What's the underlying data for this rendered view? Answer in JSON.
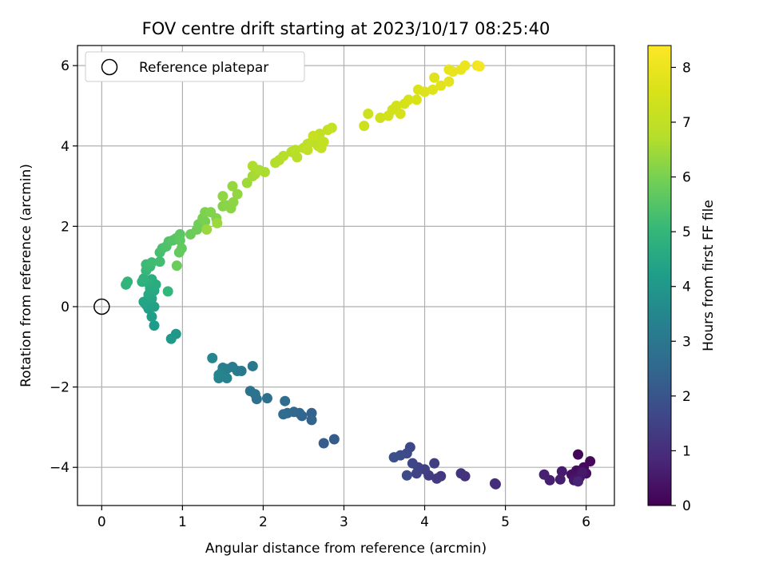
{
  "chart_data": {
    "type": "scatter",
    "title": "FOV centre drift starting at 2023/10/17 08:25:40",
    "xlabel": "Angular distance from reference (arcmin)",
    "ylabel": "Rotation from reference (arcmin)",
    "xlim": [
      -0.3,
      6.35
    ],
    "ylim": [
      -4.95,
      6.5
    ],
    "xticks": [
      0,
      1,
      2,
      3,
      4,
      5,
      6
    ],
    "yticks": [
      -4,
      -2,
      0,
      2,
      4,
      6
    ],
    "xtick_labels": [
      "0",
      "1",
      "2",
      "3",
      "4",
      "5",
      "6"
    ],
    "ytick_labels": [
      "−4",
      "−2",
      "0",
      "2",
      "4",
      "6"
    ],
    "grid": true,
    "legend": {
      "placement": "top-left",
      "entries": [
        "Reference platepar"
      ]
    },
    "colorbar": {
      "label": "Hours from first FF file",
      "range": [
        0,
        8.4
      ],
      "ticks": [
        0,
        1,
        2,
        3,
        4,
        5,
        6,
        7,
        8
      ],
      "tick_labels": [
        "0",
        "1",
        "2",
        "3",
        "4",
        "5",
        "6",
        "7",
        "8"
      ],
      "colormap": "viridis"
    },
    "reference_point": {
      "x": 0,
      "y": 0
    },
    "points": [
      {
        "x": 5.9,
        "y": -3.68,
        "t": 0.1
      },
      {
        "x": 6.05,
        "y": -3.85,
        "t": 0.15
      },
      {
        "x": 5.97,
        "y": -4.0,
        "t": 0.2
      },
      {
        "x": 5.88,
        "y": -4.08,
        "t": 0.25
      },
      {
        "x": 6.0,
        "y": -4.15,
        "t": 0.3
      },
      {
        "x": 5.82,
        "y": -4.18,
        "t": 0.35
      },
      {
        "x": 5.92,
        "y": -4.25,
        "t": 0.4
      },
      {
        "x": 5.85,
        "y": -4.32,
        "t": 0.45
      },
      {
        "x": 5.95,
        "y": -4.12,
        "t": 0.5
      },
      {
        "x": 5.7,
        "y": -4.1,
        "t": 0.55
      },
      {
        "x": 5.68,
        "y": -4.3,
        "t": 0.6
      },
      {
        "x": 5.55,
        "y": -4.32,
        "t": 0.65
      },
      {
        "x": 5.48,
        "y": -4.18,
        "t": 0.7
      },
      {
        "x": 5.9,
        "y": -4.35,
        "t": 0.75
      },
      {
        "x": 4.88,
        "y": -4.42,
        "t": 0.95
      },
      {
        "x": 4.87,
        "y": -4.4,
        "t": 1.0
      },
      {
        "x": 4.5,
        "y": -4.22,
        "t": 1.1
      },
      {
        "x": 4.45,
        "y": -4.15,
        "t": 1.15
      },
      {
        "x": 4.2,
        "y": -4.22,
        "t": 1.25
      },
      {
        "x": 4.15,
        "y": -4.28,
        "t": 1.3
      },
      {
        "x": 4.05,
        "y": -4.2,
        "t": 1.35
      },
      {
        "x": 4.12,
        "y": -3.9,
        "t": 1.4
      },
      {
        "x": 4.0,
        "y": -4.05,
        "t": 1.45
      },
      {
        "x": 3.92,
        "y": -4.0,
        "t": 1.5
      },
      {
        "x": 3.9,
        "y": -4.15,
        "t": 1.55
      },
      {
        "x": 3.85,
        "y": -3.9,
        "t": 1.6
      },
      {
        "x": 3.82,
        "y": -3.5,
        "t": 1.65
      },
      {
        "x": 3.78,
        "y": -3.65,
        "t": 1.7
      },
      {
        "x": 3.78,
        "y": -4.2,
        "t": 1.75
      },
      {
        "x": 3.7,
        "y": -3.7,
        "t": 1.8
      },
      {
        "x": 3.62,
        "y": -3.75,
        "t": 1.85
      },
      {
        "x": 2.88,
        "y": -3.3,
        "t": 2.2
      },
      {
        "x": 2.75,
        "y": -3.4,
        "t": 2.25
      },
      {
        "x": 2.6,
        "y": -2.65,
        "t": 2.35
      },
      {
        "x": 2.6,
        "y": -2.82,
        "t": 2.4
      },
      {
        "x": 2.48,
        "y": -2.72,
        "t": 2.45
      },
      {
        "x": 2.45,
        "y": -2.65,
        "t": 2.5
      },
      {
        "x": 2.38,
        "y": -2.62,
        "t": 2.55
      },
      {
        "x": 2.3,
        "y": -2.65,
        "t": 2.6
      },
      {
        "x": 2.25,
        "y": -2.68,
        "t": 2.65
      },
      {
        "x": 2.27,
        "y": -2.35,
        "t": 2.7
      },
      {
        "x": 2.05,
        "y": -2.28,
        "t": 2.75
      },
      {
        "x": 1.92,
        "y": -2.3,
        "t": 2.8
      },
      {
        "x": 1.9,
        "y": -2.18,
        "t": 2.85
      },
      {
        "x": 1.84,
        "y": -2.1,
        "t": 2.9
      },
      {
        "x": 1.87,
        "y": -1.48,
        "t": 3.0
      },
      {
        "x": 1.73,
        "y": -1.6,
        "t": 3.05
      },
      {
        "x": 1.68,
        "y": -1.6,
        "t": 3.1
      },
      {
        "x": 1.62,
        "y": -1.5,
        "t": 3.15
      },
      {
        "x": 1.55,
        "y": -1.55,
        "t": 3.2
      },
      {
        "x": 1.5,
        "y": -1.52,
        "t": 3.25
      },
      {
        "x": 1.48,
        "y": -1.65,
        "t": 3.3
      },
      {
        "x": 1.45,
        "y": -1.78,
        "t": 3.35
      },
      {
        "x": 1.55,
        "y": -1.78,
        "t": 3.4
      },
      {
        "x": 1.45,
        "y": -1.7,
        "t": 3.45
      },
      {
        "x": 1.37,
        "y": -1.28,
        "t": 3.5
      },
      {
        "x": 0.92,
        "y": -0.68,
        "t": 4.0
      },
      {
        "x": 0.86,
        "y": -0.8,
        "t": 4.05
      },
      {
        "x": 0.65,
        "y": -0.47,
        "t": 4.15
      },
      {
        "x": 0.62,
        "y": -0.25,
        "t": 4.2
      },
      {
        "x": 0.58,
        "y": -0.05,
        "t": 4.25
      },
      {
        "x": 0.65,
        "y": 0.0,
        "t": 4.3
      },
      {
        "x": 0.55,
        "y": 0.05,
        "t": 4.35
      },
      {
        "x": 0.52,
        "y": 0.12,
        "t": 4.4
      },
      {
        "x": 0.62,
        "y": 0.2,
        "t": 4.45
      },
      {
        "x": 0.58,
        "y": 0.3,
        "t": 4.5
      },
      {
        "x": 0.65,
        "y": 0.4,
        "t": 4.55
      },
      {
        "x": 0.6,
        "y": 0.45,
        "t": 4.6
      },
      {
        "x": 0.67,
        "y": 0.55,
        "t": 4.65
      },
      {
        "x": 0.62,
        "y": 0.68,
        "t": 4.7
      },
      {
        "x": 0.57,
        "y": 0.6,
        "t": 4.75
      },
      {
        "x": 0.5,
        "y": 0.62,
        "t": 4.8
      },
      {
        "x": 0.52,
        "y": 0.7,
        "t": 4.85
      },
      {
        "x": 0.3,
        "y": 0.55,
        "t": 4.9
      },
      {
        "x": 0.32,
        "y": 0.62,
        "t": 4.95
      },
      {
        "x": 0.82,
        "y": 0.38,
        "t": 5.0
      },
      {
        "x": 0.55,
        "y": 0.9,
        "t": 5.05
      },
      {
        "x": 0.6,
        "y": 1.0,
        "t": 5.1
      },
      {
        "x": 0.55,
        "y": 1.05,
        "t": 5.15
      },
      {
        "x": 0.62,
        "y": 1.1,
        "t": 5.2
      },
      {
        "x": 0.72,
        "y": 1.12,
        "t": 5.25
      },
      {
        "x": 0.72,
        "y": 1.35,
        "t": 5.3
      },
      {
        "x": 0.75,
        "y": 1.45,
        "t": 5.35
      },
      {
        "x": 0.8,
        "y": 1.5,
        "t": 5.4
      },
      {
        "x": 0.83,
        "y": 1.62,
        "t": 5.45
      },
      {
        "x": 0.88,
        "y": 1.65,
        "t": 5.5
      },
      {
        "x": 0.92,
        "y": 1.7,
        "t": 5.55
      },
      {
        "x": 0.97,
        "y": 1.8,
        "t": 5.6
      },
      {
        "x": 0.97,
        "y": 1.65,
        "t": 5.65
      },
      {
        "x": 0.99,
        "y": 1.45,
        "t": 5.7
      },
      {
        "x": 0.96,
        "y": 1.35,
        "t": 5.75
      },
      {
        "x": 0.93,
        "y": 1.02,
        "t": 5.8
      },
      {
        "x": 1.1,
        "y": 1.8,
        "t": 5.82
      },
      {
        "x": 1.18,
        "y": 1.92,
        "t": 5.85
      },
      {
        "x": 1.2,
        "y": 2.05,
        "t": 5.9
      },
      {
        "x": 1.28,
        "y": 2.12,
        "t": 5.95
      },
      {
        "x": 1.25,
        "y": 2.2,
        "t": 6.0
      },
      {
        "x": 1.28,
        "y": 2.35,
        "t": 6.05
      },
      {
        "x": 1.35,
        "y": 2.35,
        "t": 6.1
      },
      {
        "x": 1.42,
        "y": 2.2,
        "t": 6.12
      },
      {
        "x": 1.5,
        "y": 2.5,
        "t": 6.15
      },
      {
        "x": 1.55,
        "y": 2.52,
        "t": 6.2
      },
      {
        "x": 1.6,
        "y": 2.45,
        "t": 6.22
      },
      {
        "x": 1.63,
        "y": 2.6,
        "t": 6.25
      },
      {
        "x": 1.5,
        "y": 2.75,
        "t": 6.28
      },
      {
        "x": 1.68,
        "y": 2.8,
        "t": 6.3
      },
      {
        "x": 1.62,
        "y": 3.0,
        "t": 6.35
      },
      {
        "x": 1.3,
        "y": 1.92,
        "t": 6.38
      },
      {
        "x": 1.43,
        "y": 2.08,
        "t": 6.4
      },
      {
        "x": 1.8,
        "y": 3.08,
        "t": 6.45
      },
      {
        "x": 1.87,
        "y": 3.25,
        "t": 6.5
      },
      {
        "x": 1.9,
        "y": 3.3,
        "t": 6.55
      },
      {
        "x": 1.95,
        "y": 3.4,
        "t": 6.6
      },
      {
        "x": 2.02,
        "y": 3.35,
        "t": 6.62
      },
      {
        "x": 1.87,
        "y": 3.5,
        "t": 6.65
      },
      {
        "x": 2.15,
        "y": 3.58,
        "t": 6.7
      },
      {
        "x": 2.2,
        "y": 3.65,
        "t": 6.72
      },
      {
        "x": 2.25,
        "y": 3.75,
        "t": 6.75
      },
      {
        "x": 2.35,
        "y": 3.85,
        "t": 6.8
      },
      {
        "x": 2.42,
        "y": 3.72,
        "t": 6.82
      },
      {
        "x": 2.4,
        "y": 3.9,
        "t": 6.85
      },
      {
        "x": 2.5,
        "y": 3.95,
        "t": 6.88
      },
      {
        "x": 2.55,
        "y": 4.05,
        "t": 6.9
      },
      {
        "x": 2.6,
        "y": 4.1,
        "t": 6.92
      },
      {
        "x": 2.65,
        "y": 4.2,
        "t": 6.95
      },
      {
        "x": 2.68,
        "y": 4.0,
        "t": 6.97
      },
      {
        "x": 2.55,
        "y": 3.9,
        "t": 7.0
      },
      {
        "x": 2.7,
        "y": 4.3,
        "t": 7.02
      },
      {
        "x": 2.75,
        "y": 4.1,
        "t": 7.05
      },
      {
        "x": 2.72,
        "y": 3.95,
        "t": 7.08
      },
      {
        "x": 2.8,
        "y": 4.4,
        "t": 7.1
      },
      {
        "x": 2.85,
        "y": 4.45,
        "t": 7.12
      },
      {
        "x": 2.62,
        "y": 4.25,
        "t": 7.15
      },
      {
        "x": 3.25,
        "y": 4.5,
        "t": 7.25
      },
      {
        "x": 3.3,
        "y": 4.8,
        "t": 7.3
      },
      {
        "x": 3.45,
        "y": 4.7,
        "t": 7.35
      },
      {
        "x": 3.55,
        "y": 4.75,
        "t": 7.38
      },
      {
        "x": 3.6,
        "y": 4.9,
        "t": 7.42
      },
      {
        "x": 3.65,
        "y": 5.0,
        "t": 7.45
      },
      {
        "x": 3.7,
        "y": 4.8,
        "t": 7.48
      },
      {
        "x": 3.75,
        "y": 5.05,
        "t": 7.5
      },
      {
        "x": 3.8,
        "y": 5.15,
        "t": 7.55
      },
      {
        "x": 3.9,
        "y": 5.15,
        "t": 7.58
      },
      {
        "x": 3.92,
        "y": 5.4,
        "t": 7.62
      },
      {
        "x": 4.0,
        "y": 5.35,
        "t": 7.65
      },
      {
        "x": 4.1,
        "y": 5.4,
        "t": 7.7
      },
      {
        "x": 4.12,
        "y": 5.7,
        "t": 7.75
      },
      {
        "x": 4.2,
        "y": 5.5,
        "t": 7.78
      },
      {
        "x": 4.3,
        "y": 5.6,
        "t": 7.82
      },
      {
        "x": 4.3,
        "y": 5.9,
        "t": 7.88
      },
      {
        "x": 4.35,
        "y": 5.85,
        "t": 7.92
      },
      {
        "x": 4.45,
        "y": 5.9,
        "t": 7.96
      },
      {
        "x": 4.5,
        "y": 6.0,
        "t": 8.0
      },
      {
        "x": 4.65,
        "y": 6.0,
        "t": 8.1
      },
      {
        "x": 4.68,
        "y": 5.98,
        "t": 8.2
      }
    ]
  }
}
